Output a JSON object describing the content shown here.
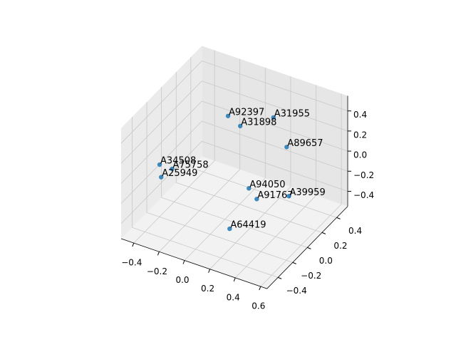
{
  "chart_data": {
    "type": "scatter3d",
    "color": "#1f77b4",
    "grid": true,
    "labels": [
      "A92397",
      "A31955",
      "A31898",
      "A89657",
      "A34508",
      "A75758",
      "A25949",
      "A94050",
      "A91767",
      "A39959",
      "A64419"
    ],
    "x": [
      -0.12,
      0.18,
      0.15,
      0.4,
      -0.37,
      -0.33,
      -0.3,
      0.16,
      0.28,
      0.36,
      0.24
    ],
    "y": [
      0.25,
      0.35,
      -0.05,
      0.15,
      -0.25,
      -0.15,
      -0.35,
      0.05,
      -0.05,
      0.25,
      -0.35
    ],
    "z": [
      0.24,
      0.28,
      0.48,
      0.23,
      0.02,
      -0.08,
      0.0,
      -0.21,
      -0.19,
      -0.35,
      -0.28
    ],
    "xlim": [
      -0.5,
      0.65
    ],
    "ylim": [
      -0.55,
      0.55
    ],
    "zlim": [
      -0.55,
      0.55
    ],
    "xticks": [
      {
        "value": -0.4,
        "label": "−0.4"
      },
      {
        "value": -0.2,
        "label": "−0.2"
      },
      {
        "value": 0,
        "label": "0.0"
      },
      0.2,
      0.4,
      0.6
    ],
    "yticks": [
      {
        "value": -0.4,
        "label": "−0.4"
      },
      {
        "value": -0.2,
        "label": "−0.2"
      },
      {
        "value": 0,
        "label": "0.0"
      },
      0.2,
      0.4
    ],
    "zticks": [
      {
        "value": -0.4,
        "label": "−0.4"
      },
      {
        "value": -0.2,
        "label": "−0.2"
      },
      {
        "value": 0,
        "label": "0.0"
      },
      0.2,
      0.4
    ]
  }
}
